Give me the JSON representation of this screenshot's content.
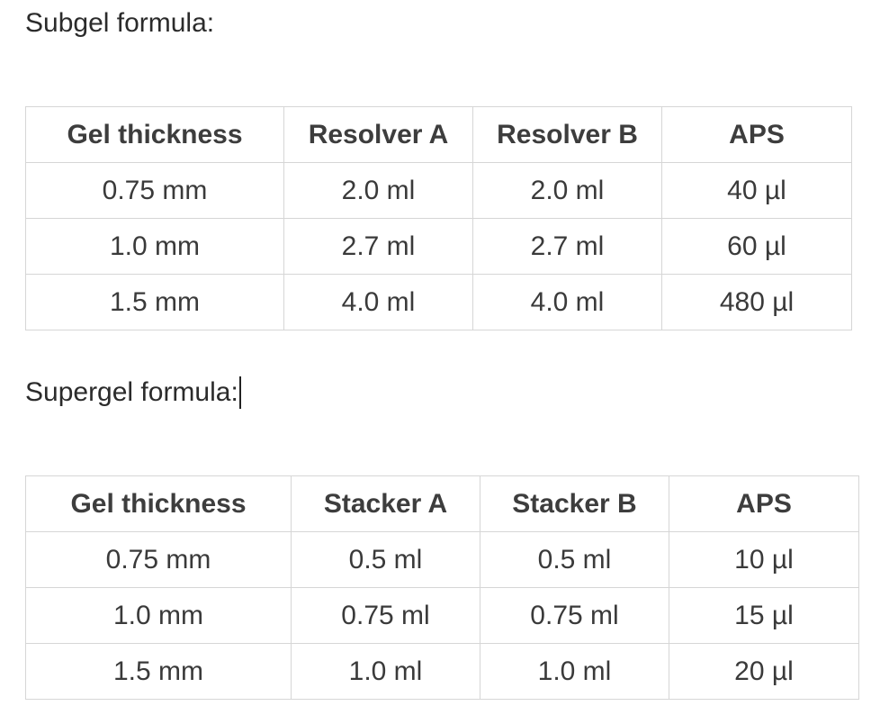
{
  "subgel": {
    "heading": "Subgel formula:",
    "columns": [
      "Gel thickness",
      "Resolver A",
      "Resolver B",
      "APS"
    ],
    "rows": [
      [
        "0.75 mm",
        "2.0 ml",
        "2.0 ml",
        "40 µl"
      ],
      [
        "1.0 mm",
        "2.7 ml",
        "2.7 ml",
        "60 µl"
      ],
      [
        "1.5 mm",
        "4.0 ml",
        "4.0 ml",
        "480 µl"
      ]
    ]
  },
  "supergel": {
    "heading": "Supergel formula:",
    "columns": [
      "Gel thickness",
      "Stacker A",
      "Stacker B",
      "APS"
    ],
    "rows": [
      [
        "0.75 mm",
        "0.5 ml",
        "0.5 ml",
        "10 µl"
      ],
      [
        "1.0 mm",
        "0.75 ml",
        "0.75 ml",
        "15 µl"
      ],
      [
        "1.5 mm",
        "1.0 ml",
        "1.0 ml",
        "20 µl"
      ]
    ]
  }
}
